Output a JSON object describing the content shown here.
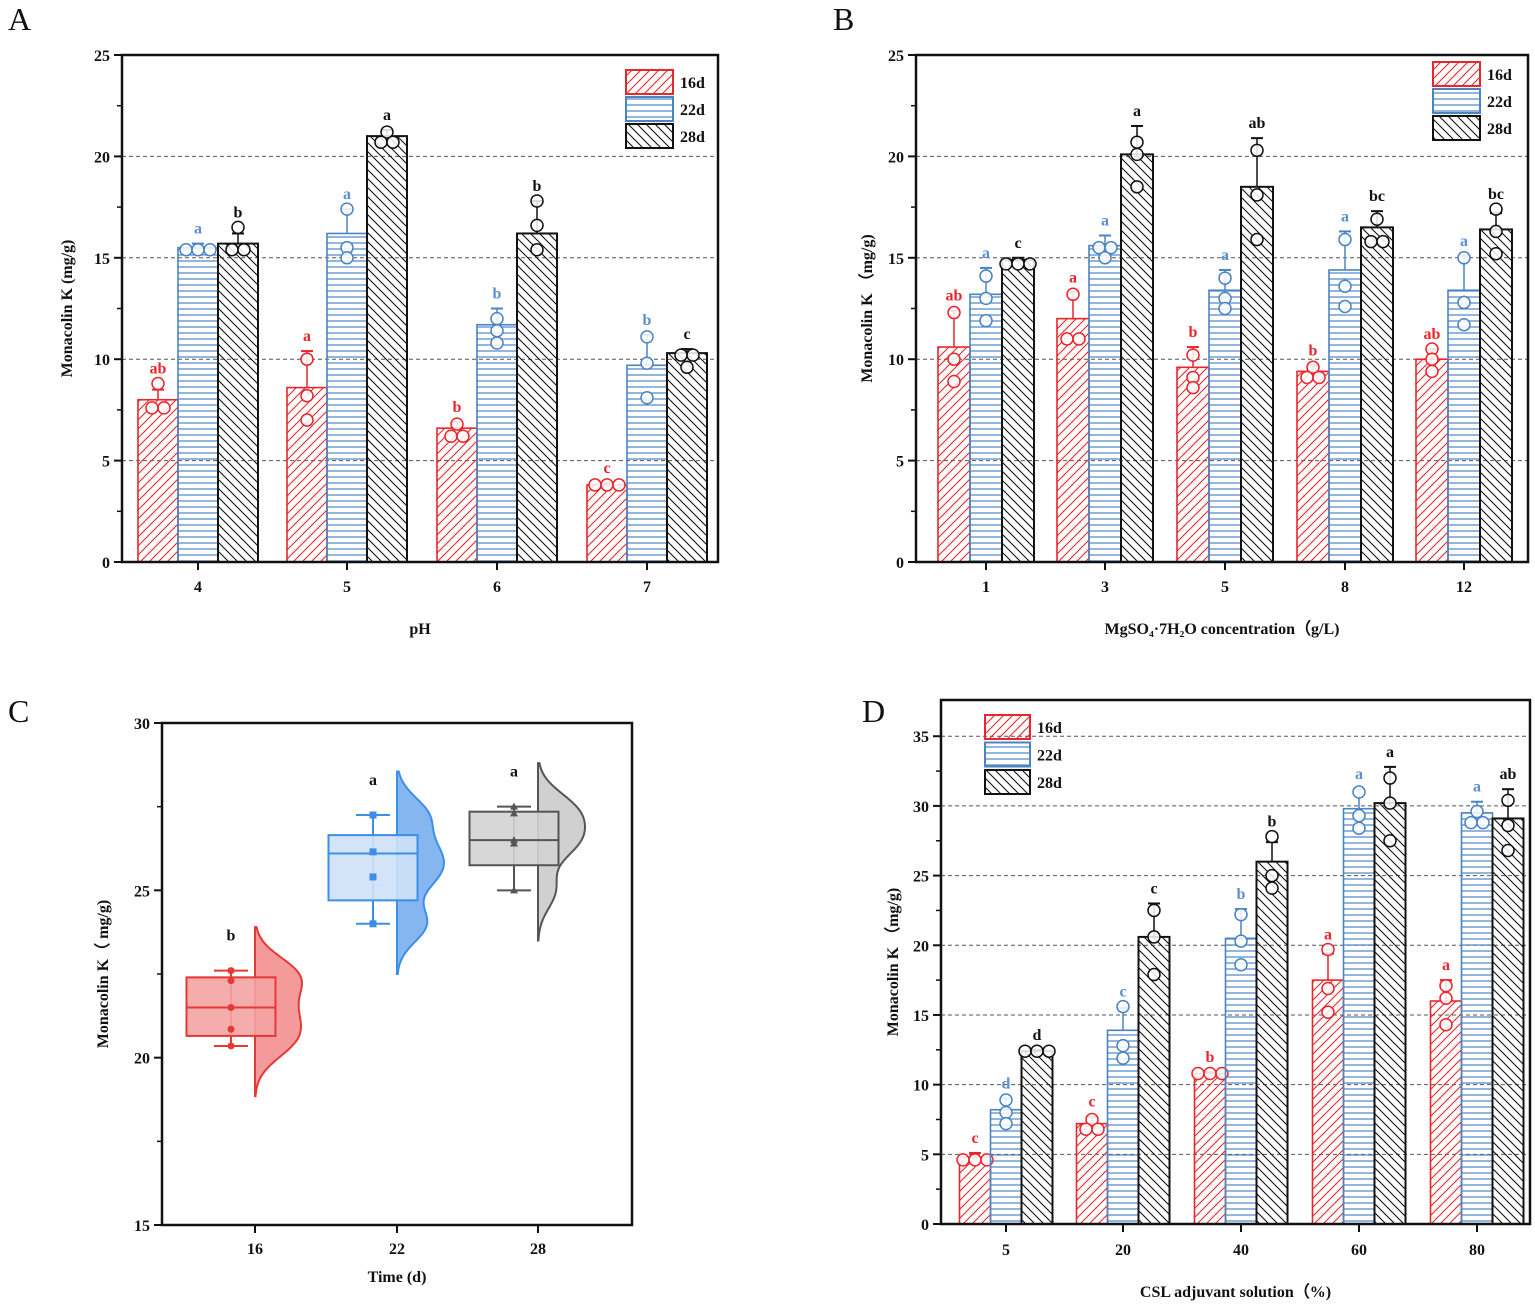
{
  "chart_data": [
    {
      "type": "bar",
      "panel_label": "A",
      "xlabel": "pH",
      "ylabel": "Monacolin K (mg/g)",
      "categories": [
        "4",
        "5",
        "6",
        "7"
      ],
      "ylim": [
        0,
        25
      ],
      "y_ticks": [
        0,
        5,
        10,
        15,
        20,
        25
      ],
      "grid": true,
      "legend": "top-right",
      "series": [
        {
          "name": "16d",
          "color": "#e8262c",
          "pattern": "diagonal-forward",
          "values": [
            8.0,
            8.6,
            6.6,
            3.8
          ],
          "errors": [
            0.5,
            1.8,
            0.3,
            0.1
          ],
          "points": [
            [
              8.8,
              7.6,
              7.6
            ],
            [
              10.0,
              8.2,
              7.0
            ],
            [
              6.8,
              6.2,
              6.2
            ],
            [
              3.8,
              3.8,
              3.8
            ]
          ],
          "letters": [
            "ab",
            "a",
            "b",
            "c"
          ]
        },
        {
          "name": "22d",
          "color": "#4a84c4",
          "pattern": "horizontal",
          "values": [
            15.5,
            16.2,
            11.7,
            9.7
          ],
          "errors": [
            0.2,
            1.2,
            0.8,
            1.5
          ],
          "points": [
            [
              15.4,
              15.4,
              15.4
            ],
            [
              17.4,
              15.5,
              15.0
            ],
            [
              12.0,
              11.4,
              10.8
            ],
            [
              11.1,
              9.8,
              8.1
            ]
          ],
          "letters": [
            "a",
            "a",
            "b",
            "b"
          ]
        },
        {
          "name": "28d",
          "color": "#111111",
          "pattern": "diagonal-backward",
          "values": [
            15.7,
            21.0,
            16.2,
            10.3
          ],
          "errors": [
            0.5,
            0.3,
            1.6,
            0.2
          ],
          "points": [
            [
              16.5,
              15.4,
              15.4
            ],
            [
              21.2,
              20.7,
              20.7
            ],
            [
              17.8,
              16.6,
              15.4
            ],
            [
              10.2,
              10.2,
              9.6
            ]
          ],
          "letters": [
            "b",
            "a",
            "b",
            "c"
          ]
        }
      ]
    },
    {
      "type": "bar",
      "panel_label": "B",
      "xlabel": "MgSO₄·7H₂O concentration（g/L)",
      "ylabel": "Monacolin K （mg/g)",
      "categories": [
        "1",
        "3",
        "5",
        "8",
        "12"
      ],
      "ylim": [
        0,
        25
      ],
      "y_ticks": [
        0,
        5,
        10,
        15,
        20,
        25
      ],
      "grid": true,
      "legend": "top-right",
      "series": [
        {
          "name": "16d",
          "color": "#e8262c",
          "pattern": "diagonal-forward",
          "values": [
            10.6,
            12.0,
            9.6,
            9.4,
            10.0
          ],
          "errors": [
            1.8,
            1.3,
            1.0,
            0.3,
            0.5
          ],
          "points": [
            [
              12.3,
              10.0,
              8.9
            ],
            [
              13.2,
              11.0,
              11.0
            ],
            [
              10.2,
              9.1,
              8.6
            ],
            [
              9.6,
              9.1,
              9.1
            ],
            [
              10.5,
              10.0,
              9.4
            ]
          ],
          "letters": [
            "ab",
            "a",
            "b",
            "b",
            "ab"
          ]
        },
        {
          "name": "22d",
          "color": "#4a84c4",
          "pattern": "horizontal",
          "values": [
            13.2,
            15.6,
            13.4,
            14.4,
            13.4
          ],
          "errors": [
            1.3,
            0.5,
            1.0,
            1.9,
            1.7
          ],
          "points": [
            [
              14.1,
              13.0,
              11.9
            ],
            [
              15.5,
              15.5,
              15.0
            ],
            [
              14.0,
              13.0,
              12.5
            ],
            [
              15.9,
              13.6,
              12.6
            ],
            [
              15.0,
              12.8,
              11.7
            ]
          ],
          "letters": [
            "a",
            "a",
            "a",
            "a",
            "a"
          ]
        },
        {
          "name": "28d",
          "color": "#111111",
          "pattern": "diagonal-backward",
          "values": [
            14.9,
            20.1,
            18.5,
            16.5,
            16.4
          ],
          "errors": [
            0.1,
            1.4,
            2.4,
            0.8,
            0.8
          ],
          "points": [
            [
              14.7,
              14.7,
              14.7
            ],
            [
              20.7,
              20.1,
              18.5
            ],
            [
              20.3,
              18.1,
              15.9
            ],
            [
              16.9,
              15.8,
              15.8
            ],
            [
              17.4,
              16.3,
              15.2
            ]
          ],
          "letters": [
            "c",
            "a",
            "ab",
            "bc",
            "bc"
          ]
        }
      ]
    },
    {
      "type": "box",
      "panel_label": "C",
      "xlabel": "Time (d)",
      "ylabel": "Monacolin K（ mg/g)",
      "categories": [
        "16",
        "22",
        "28"
      ],
      "ylim": [
        15,
        30
      ],
      "y_ticks": [
        15,
        20,
        25,
        30
      ],
      "grid": false,
      "groups": [
        {
          "category": "16",
          "color": "#e53935",
          "box_fill": "#f4a3a3",
          "violin_fill": "#f59a9a",
          "marker": "circle",
          "whisker_low": 20.35,
          "q1": 20.65,
          "median": 21.5,
          "q3": 22.4,
          "whisker_high": 22.6,
          "points": [
            22.6,
            22.3,
            21.5,
            20.85,
            20.35
          ],
          "letter": "b"
        },
        {
          "category": "22",
          "color": "#3d8ee6",
          "box_fill": "#cfe1f7",
          "violin_fill": "#86b6f0",
          "marker": "square",
          "whisker_low": 24.0,
          "q1": 24.7,
          "median": 26.1,
          "q3": 26.65,
          "whisker_high": 27.25,
          "points": [
            27.25,
            26.15,
            25.4,
            24.0
          ],
          "letter": "a"
        },
        {
          "category": "28",
          "color": "#555555",
          "box_fill": "#d3d3d3",
          "violin_fill": "#d0d0d0",
          "marker": "triangle",
          "whisker_low": 25.0,
          "q1": 25.75,
          "median": 26.5,
          "q3": 27.35,
          "whisker_high": 27.5,
          "points": [
            27.5,
            27.3,
            26.5,
            26.4,
            25.0
          ],
          "letter": "a"
        }
      ]
    },
    {
      "type": "bar",
      "panel_label": "D",
      "xlabel": "CSL adjuvant solution（%)",
      "ylabel": "Monacolin K （mg/g)",
      "categories": [
        "5",
        "20",
        "40",
        "60",
        "80"
      ],
      "ylim": [
        0,
        37.6
      ],
      "y_ticks": [
        0,
        5,
        10,
        15,
        20,
        25,
        30,
        35
      ],
      "grid": true,
      "legend": "top-left",
      "series": [
        {
          "name": "16d",
          "color": "#e8262c",
          "pattern": "diagonal-forward",
          "values": [
            4.8,
            7.2,
            10.8,
            17.5,
            16.0
          ],
          "errors": [
            0.3,
            0.5,
            0.1,
            1.9,
            1.5
          ],
          "points": [
            [
              4.6,
              4.6,
              4.6
            ],
            [
              7.5,
              6.8,
              6.8
            ],
            [
              10.8,
              10.8,
              10.8
            ],
            [
              19.7,
              16.9,
              15.2
            ],
            [
              17.1,
              16.2,
              14.3
            ]
          ],
          "letters": [
            "c",
            "c",
            "b",
            "a",
            "a"
          ]
        },
        {
          "name": "22d",
          "color": "#4a84c4",
          "pattern": "horizontal",
          "values": [
            8.2,
            13.9,
            20.5,
            29.8,
            29.5
          ],
          "errors": [
            0.8,
            1.6,
            2.1,
            1.4,
            0.8
          ],
          "points": [
            [
              8.9,
              8.0,
              7.2
            ],
            [
              15.6,
              12.8,
              11.9
            ],
            [
              22.2,
              20.3,
              18.6
            ],
            [
              31.0,
              29.3,
              28.4
            ],
            [
              29.6,
              28.8,
              28.8
            ]
          ],
          "letters": [
            "d",
            "c",
            "b",
            "a",
            "a"
          ]
        },
        {
          "name": "28d",
          "color": "#111111",
          "pattern": "diagonal-backward",
          "values": [
            12.4,
            20.6,
            26.0,
            30.2,
            29.1
          ],
          "errors": [
            0.1,
            2.4,
            1.4,
            2.6,
            2.1
          ],
          "points": [
            [
              12.4,
              12.4,
              12.4
            ],
            [
              22.5,
              20.6,
              17.9
            ],
            [
              27.8,
              25.0,
              24.1
            ],
            [
              32.0,
              30.2,
              27.5
            ],
            [
              30.4,
              28.6,
              26.8
            ]
          ],
          "letters": [
            "d",
            "c",
            "b",
            "a",
            "ab"
          ]
        }
      ]
    }
  ]
}
